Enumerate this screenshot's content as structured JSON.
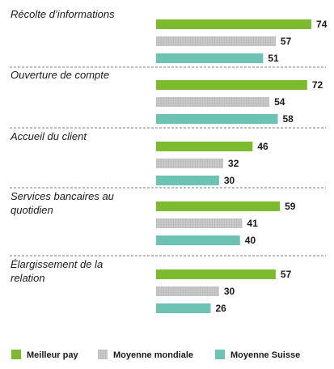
{
  "chart_data": {
    "type": "bar",
    "orientation": "horizontal",
    "categories": [
      [
        "Récolte d’informations"
      ],
      [
        "Ouverture de compte"
      ],
      [
        "Accueil du client"
      ],
      [
        "Services bancaires au",
        "quotidien"
      ],
      [
        "Élargissement de la",
        "relation"
      ]
    ],
    "series": [
      {
        "name": "Meilleur pay",
        "color": "#7dbb2e",
        "values": [
          74,
          72,
          46,
          59,
          57
        ]
      },
      {
        "name": "Moyenne mondiale",
        "color": "#c2c2c2",
        "pattern": "dotted",
        "values": [
          57,
          54,
          32,
          41,
          30
        ]
      },
      {
        "name": "Moyenne Suisse",
        "color": "#6cc3b4",
        "values": [
          51,
          58,
          30,
          40,
          26
        ]
      }
    ],
    "xlim": [
      0,
      80
    ],
    "legend_position": "bottom",
    "grid": false
  }
}
